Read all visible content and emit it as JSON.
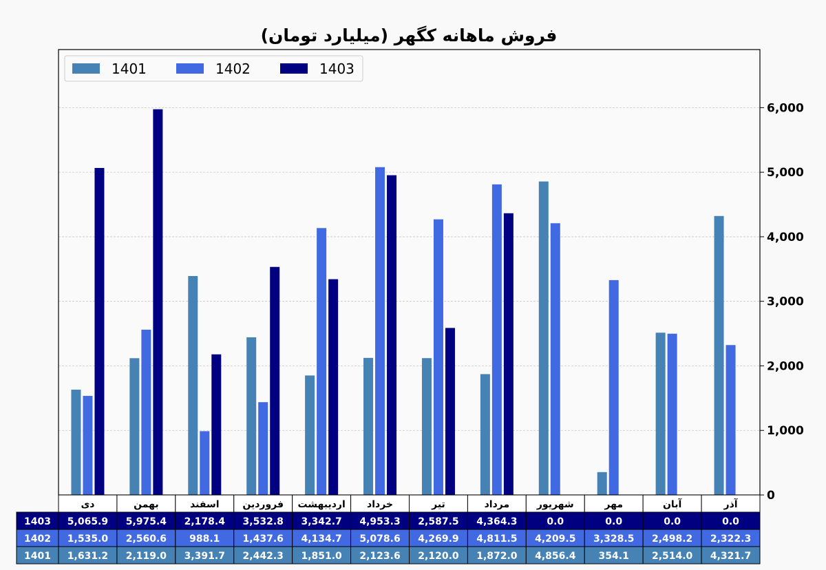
{
  "chart_data": {
    "type": "bar",
    "title": "فروش ماهانه کگهر (میلیارد تومان)",
    "categories": [
      "دی",
      "بهمن",
      "اسفند",
      "فروردین",
      "اردیبهشت",
      "خرداد",
      "تیر",
      "مرداد",
      "شهریور",
      "مهر",
      "آبان",
      "آذر"
    ],
    "series": [
      {
        "name": "1401",
        "color": "#4682b4",
        "values": [
          1631.2,
          2119.0,
          3391.7,
          2442.3,
          1851.0,
          2123.6,
          2120.0,
          1872.0,
          4856.4,
          354.1,
          2514.0,
          4321.7
        ],
        "labels": [
          "1,631.2",
          "2,119.0",
          "3,391.7",
          "2,442.3",
          "1,851.0",
          "2,123.6",
          "2,120.0",
          "1,872.0",
          "4,856.4",
          "354.1",
          "2,514.0",
          "4,321.7"
        ]
      },
      {
        "name": "1402",
        "color": "#4169e1",
        "values": [
          1535.0,
          2560.6,
          988.1,
          1437.6,
          4134.7,
          5078.6,
          4269.9,
          4811.5,
          4209.5,
          3328.5,
          2498.2,
          2322.3
        ],
        "labels": [
          "1,535.0",
          "2,560.6",
          "988.1",
          "1,437.6",
          "4,134.7",
          "5,078.6",
          "4,269.9",
          "4,811.5",
          "4,209.5",
          "3,328.5",
          "2,498.2",
          "2,322.3"
        ]
      },
      {
        "name": "1403",
        "color": "#000080",
        "values": [
          5065.9,
          5975.4,
          2178.4,
          3532.8,
          3342.7,
          4953.3,
          2587.5,
          4364.3,
          0.0,
          0.0,
          0.0,
          0.0
        ],
        "labels": [
          "5,065.9",
          "5,975.4",
          "2,178.4",
          "3,532.8",
          "3,342.7",
          "4,953.3",
          "2,587.5",
          "4,364.3",
          "0.0",
          "0.0",
          "0.0",
          "0.0"
        ]
      }
    ],
    "yticks": [
      0,
      1000,
      2000,
      3000,
      4000,
      5000,
      6000
    ],
    "ytick_labels": [
      "0",
      "1,000",
      "2,000",
      "3,000",
      "4,000",
      "5,000",
      "6,000"
    ],
    "ylim": [
      0,
      6900
    ],
    "yaxis_side": "right",
    "grid": true,
    "legend_position": "top-left",
    "table_row_order": [
      "1403",
      "1402",
      "1401"
    ]
  }
}
